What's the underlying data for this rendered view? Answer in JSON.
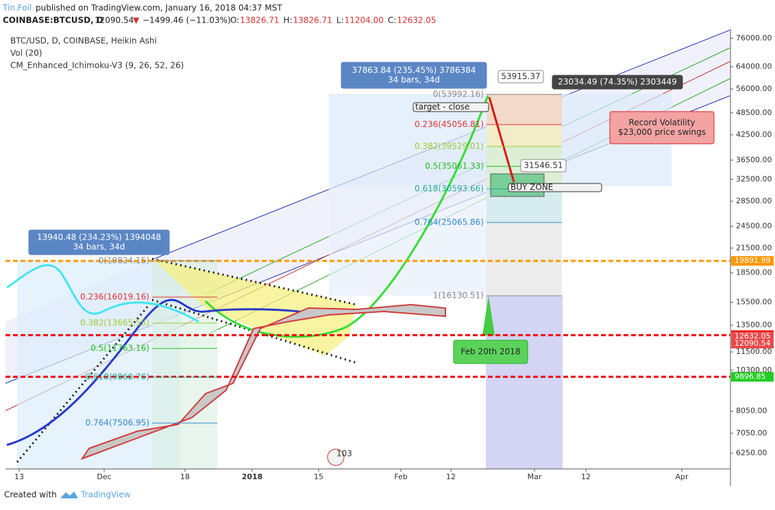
{
  "header": {
    "author": "Tin.Foil",
    "published": "published on TradingView.com, January 16, 2018 04:37 MST",
    "symbol": "COINBASE:BTCUSD, D",
    "last": "12090.54",
    "arrow": "▼",
    "change": "−1499.46 (−11.03%)",
    "ohlc": [
      {
        "key": "O:",
        "value": "13826.71"
      },
      {
        "key": "H:",
        "value": "13826.71"
      },
      {
        "key": "L:",
        "value": "11204.00"
      },
      {
        "key": "C:",
        "value": "12632.05"
      }
    ]
  },
  "chart_data": {
    "type": "candlestick",
    "title": "BTC/USD, D, COINBASE, Heikin Ashi",
    "indicators": [
      "Vol (20)",
      "CM_Enhanced_Ichimoku-V3 (9, 26, 52, 26)"
    ],
    "log_scale": true,
    "ylim": [
      5685,
      80500
    ],
    "yticks": [
      {
        "value": 6250,
        "label": "6250.00"
      },
      {
        "value": 7050,
        "label": "7050.00"
      },
      {
        "value": 8050,
        "label": "8050.00"
      },
      {
        "value": 10300,
        "label": "10300.00"
      },
      {
        "value": 11500,
        "label": "11500.00"
      },
      {
        "value": 13500,
        "label": "13500.00"
      },
      {
        "value": 15500,
        "label": "15500.00"
      },
      {
        "value": 18500,
        "label": "18500.00"
      },
      {
        "value": 21500,
        "label": "21500.00"
      },
      {
        "value": 24500,
        "label": "24500.00"
      },
      {
        "value": 28500,
        "label": "28500.00"
      },
      {
        "value": 32500,
        "label": "32500.00"
      },
      {
        "value": 36500,
        "label": "36500.00"
      },
      {
        "value": 42500,
        "label": "42500.00"
      },
      {
        "value": 48500,
        "label": "48500.00"
      },
      {
        "value": 56000,
        "label": "56000.00"
      },
      {
        "value": 64000,
        "label": "64000.00"
      },
      {
        "value": 76000,
        "label": "76000.00"
      }
    ],
    "x_labels": [
      "13",
      "Dec",
      "18",
      "2018",
      "15",
      "Feb",
      "12",
      "Mar",
      "12",
      "Apr"
    ],
    "price_labels": [
      {
        "value": 19891.99,
        "color": "#ff9800",
        "line": true
      },
      {
        "value": 12722.53,
        "color": "#f00000",
        "line": true
      },
      {
        "value": 12632.05,
        "color": "#e84a4a",
        "line": false
      },
      {
        "value": 12090.54,
        "color": "#e84a4a",
        "line": false
      },
      {
        "value": 9900.67,
        "color": "#f00000",
        "line": true
      },
      {
        "value": 9896.85,
        "color": "#22cc22",
        "line": false
      }
    ],
    "fib_right": [
      "0(53992.16)",
      "0.236(45056.81)",
      "0.382(39529.01)",
      "0.5(35061.33)",
      "0.618(30593.66)",
      "0.764(25065.86)",
      "1(16130.51)"
    ],
    "fib_left": [
      "0(19824.15)",
      "0.236(16019.16)",
      "0.382(13665.55)",
      "0.5(11763.16)",
      "0.618(9860.76)",
      "0.764(7506.95)"
    ],
    "callouts": [
      {
        "lines": [
          "37863.84 (235.45%) 3786384",
          "34 bars, 34d"
        ]
      },
      {
        "lines": [
          "13940.48 (234.23%) 1394048",
          "34 bars, 34d"
        ]
      },
      {
        "lines": [
          "53915.37"
        ]
      },
      {
        "lines": [
          "23034.49 (74.35%) 2303449"
        ]
      },
      {
        "lines": [
          "31546.51"
        ]
      },
      {
        "lines": [
          "Record Volatility",
          "$23,000 price swings"
        ]
      },
      {
        "lines": [
          "Feb 20th 2018"
        ]
      },
      {
        "lines": [
          "target - close"
        ]
      },
      {
        "lines": [
          "BUY ZONE"
        ]
      }
    ],
    "badge": "103"
  },
  "footer": {
    "created": "Created with",
    "brand": "TradingView"
  }
}
